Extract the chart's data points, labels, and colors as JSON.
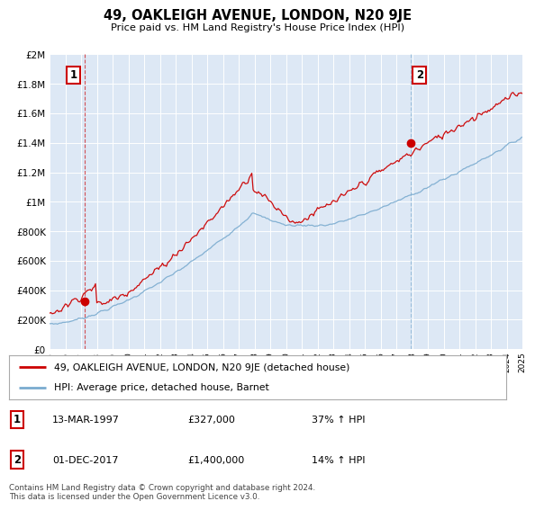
{
  "title": "49, OAKLEIGH AVENUE, LONDON, N20 9JE",
  "subtitle": "Price paid vs. HM Land Registry's House Price Index (HPI)",
  "footer": "Contains HM Land Registry data © Crown copyright and database right 2024.\nThis data is licensed under the Open Government Licence v3.0.",
  "legend_line1": "49, OAKLEIGH AVENUE, LONDON, N20 9JE (detached house)",
  "legend_line2": "HPI: Average price, detached house, Barnet",
  "annotation1_date": "13-MAR-1997",
  "annotation1_price": "£327,000",
  "annotation1_hpi": "37% ↑ HPI",
  "annotation2_date": "01-DEC-2017",
  "annotation2_price": "£1,400,000",
  "annotation2_hpi": "14% ↑ HPI",
  "red_color": "#cc0000",
  "blue_color": "#7aabcf",
  "background_color": "#dde8f5",
  "plot_bg": "#dde8f5",
  "fig_bg": "#ffffff",
  "ylim": [
    0,
    2000000
  ],
  "yticks": [
    0,
    200000,
    400000,
    600000,
    800000,
    1000000,
    1200000,
    1400000,
    1600000,
    1800000,
    2000000
  ],
  "sale1_year": 1997.21,
  "sale1_price": 327000,
  "sale2_year": 2017.92,
  "sale2_price": 1400000
}
